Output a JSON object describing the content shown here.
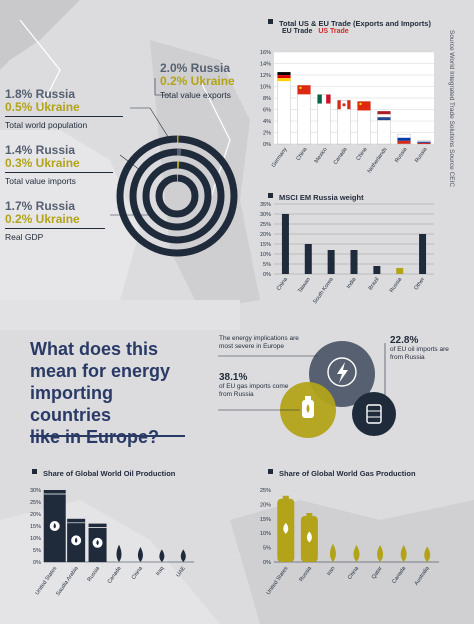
{
  "colors": {
    "navy": "#1f2a3a",
    "gray": "#566070",
    "olive": "#b2a319",
    "heading": "#2a3a66",
    "eu": "#1f2a3a",
    "us": "#d42a2a"
  },
  "stats": {
    "exports": {
      "russia": "2.0% Russia",
      "ukraine": "0.2% Ukraine",
      "label": "Total value exports"
    },
    "population": {
      "russia": "1.8% Russia",
      "ukraine": "0.5% Ukraine",
      "label": "Total world population"
    },
    "imports": {
      "russia": "1.4% Russia",
      "ukraine": "0.3% Ukraine",
      "label": "Total value imports"
    },
    "gdp": {
      "russia": "1.7% Russia",
      "ukraine": "0.2% Ukraine",
      "label": "Real GDP"
    }
  },
  "heading": [
    "What does this",
    "mean for energy",
    "importing countries",
    "like in Europe?"
  ],
  "venn": {
    "top_text": "The energy implications are most severe in Europe",
    "gas_pct": "38.1%",
    "gas_text": "of EU gas imports come from Russia",
    "oil_pct": "22.8%",
    "oil_text": "of EU oil imports are from Russia",
    "icons": [
      "lightning-icon",
      "gas-cylinder-icon",
      "oil-barrel-icon"
    ]
  },
  "source": "Source World Integrated Trade Solutions Source CEIC",
  "chart_data": [
    {
      "type": "bar",
      "title": "Total US & EU Trade (Exports and Imports)",
      "legend": [
        "EU Trade",
        "US Trade"
      ],
      "categories": [
        "Germany",
        "China",
        "Mexico",
        "Canada",
        "China",
        "Netherlands",
        "Russia",
        "Russia"
      ],
      "flags": [
        "de",
        "cn",
        "mx",
        "ca",
        "cn",
        "nl",
        "ru",
        "ru"
      ],
      "series": [
        {
          "name": "EU Trade",
          "values": [
            0,
            0,
            0,
            0,
            0,
            0,
            0,
            0
          ]
        },
        {
          "name": "US Trade",
          "values": [
            0,
            0,
            0,
            0,
            0,
            0,
            0,
            0
          ]
        }
      ],
      "bars": [
        12.5,
        10.2,
        8.6,
        7.6,
        7.4,
        5.7,
        1.6,
        0.6
      ],
      "ylim": [
        0,
        16
      ],
      "yticks": [
        "0%",
        "2%",
        "4%",
        "6%",
        "8%",
        "10%",
        "12%",
        "14%",
        "16%"
      ],
      "grid": true
    },
    {
      "type": "bar",
      "title": "MSCI EM Russia weight",
      "categories": [
        "China",
        "Taiwan",
        "South Korea",
        "India",
        "Brazil",
        "Russia",
        "Other"
      ],
      "values": [
        30,
        15,
        12,
        12,
        4,
        3,
        20
      ],
      "highlight": "Russia",
      "ylim": [
        0,
        35
      ],
      "yticks": [
        "0%",
        "5%",
        "10%",
        "15%",
        "20%",
        "25%",
        "30%",
        "35%"
      ],
      "grid": true
    },
    {
      "type": "bar",
      "title": "Share of Global World Oil Production",
      "categories": [
        "United States",
        "Saudia Arabia",
        "Russia",
        "Canada",
        "China",
        "Iraq",
        "UAE"
      ],
      "values": [
        30,
        18,
        16,
        6,
        5,
        4,
        4
      ],
      "ylim": [
        0,
        30
      ],
      "yticks": [
        "0%",
        "5%",
        "10%",
        "15%",
        "20%",
        "25%",
        "30%"
      ]
    },
    {
      "type": "bar",
      "title": "Share of Global World Gas Production",
      "categories": [
        "United States",
        "Russia",
        "Iran",
        "China",
        "Qatar",
        "Canada",
        "Australia"
      ],
      "values": [
        23,
        17,
        5,
        4.5,
        4.5,
        4.5,
        4
      ],
      "ylim": [
        0,
        25
      ],
      "yticks": [
        "0%",
        "5%",
        "10%",
        "15%",
        "20%",
        "25%"
      ]
    }
  ]
}
